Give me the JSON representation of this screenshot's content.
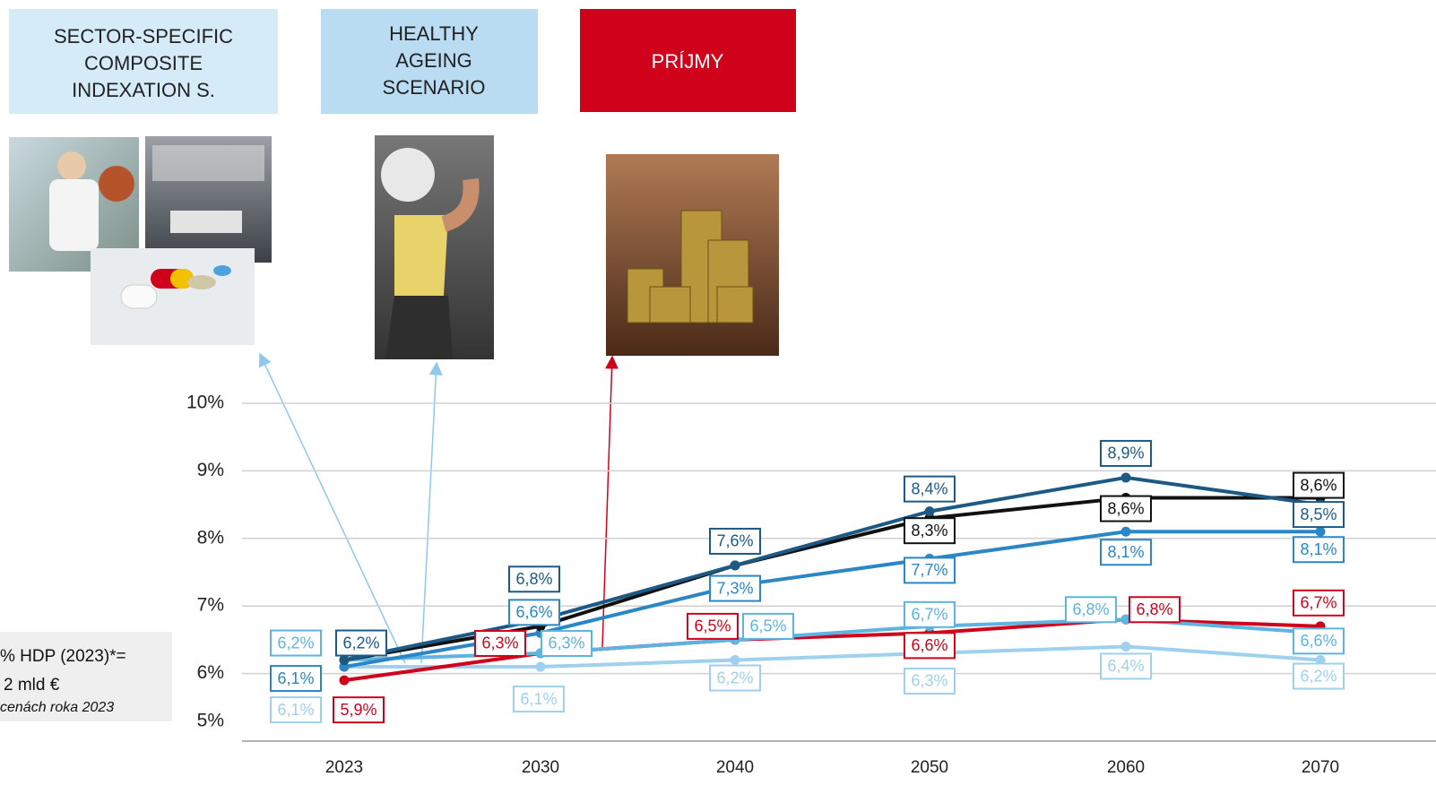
{
  "header": {
    "boxes": [
      {
        "lines": [
          "SECTOR-SPECIFIC",
          "COMPOSITE",
          "INDEXATION S."
        ]
      },
      {
        "lines": [
          "HEALTHY",
          "AGEING",
          "SCENARIO"
        ]
      },
      {
        "lines": [
          "PRÍJMY"
        ]
      }
    ]
  },
  "note": {
    "lines": [
      "% HDP (2023)*=",
      "2 mld €"
    ],
    "footnote": "cenách roka 2023"
  },
  "chart_data": {
    "type": "line",
    "categories": [
      "2023",
      "2030",
      "2040",
      "2050",
      "2060",
      "2070"
    ],
    "ylim": [
      5,
      10
    ],
    "yticks": [
      {
        "value": 5,
        "label": "5%"
      },
      {
        "value": 6,
        "label": "6%"
      },
      {
        "value": 7,
        "label": "7%"
      },
      {
        "value": 8,
        "label": "8%"
      },
      {
        "value": 9,
        "label": "9%"
      },
      {
        "value": 10,
        "label": "10%"
      }
    ],
    "grid": true,
    "series": [
      {
        "color": "#9fd0ee",
        "values": [
          6.1,
          6.1,
          6.2,
          6.3,
          6.4,
          6.2
        ],
        "value_labels": [
          "6,1%",
          "6,1%",
          "6,2%",
          "6,3%",
          "6,4%",
          "6,2%"
        ]
      },
      {
        "color": "#d0021b",
        "values": [
          5.9,
          6.3,
          6.5,
          6.6,
          6.8,
          6.7
        ],
        "value_labels": [
          "5,9%",
          "6,3%",
          "6,5%",
          "6,6%",
          "6,8%",
          "6,7%"
        ]
      },
      {
        "color": "#5fb3e0",
        "values": [
          6.2,
          6.3,
          6.5,
          6.7,
          6.8,
          6.6
        ],
        "value_labels": [
          "6,2%",
          "6,3%",
          "6,5%",
          "6,7%",
          "6,8%",
          "6,6%"
        ]
      },
      {
        "color": "#2a86c4",
        "values": [
          6.1,
          6.6,
          7.3,
          7.7,
          8.1,
          8.1
        ],
        "value_labels": [
          "6,1%",
          "6,6%",
          "7,3%",
          "7,7%",
          "8,1%",
          "8,1%"
        ]
      },
      {
        "color": "#111111",
        "values": [
          6.2,
          6.7,
          7.6,
          8.3,
          8.6,
          8.6
        ],
        "value_labels": [
          null,
          null,
          null,
          "8,3%",
          "8,6%",
          "8,6%"
        ]
      },
      {
        "color": "#1c5a85",
        "values": [
          6.2,
          6.8,
          7.6,
          8.4,
          8.9,
          8.5
        ],
        "value_labels": [
          "6,2%",
          "6,8%",
          "7,6%",
          "8,4%",
          "8,9%",
          "8,5%"
        ]
      }
    ]
  }
}
